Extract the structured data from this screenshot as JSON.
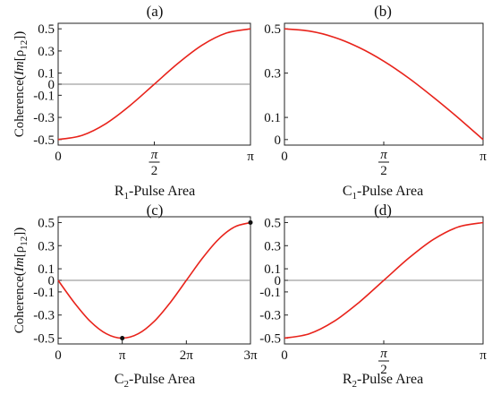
{
  "y_axis_label": "Coherence(Im[ρ12])",
  "chart_data": [
    {
      "type": "line",
      "panel": "(a)",
      "xlabel": "R1-Pulse Area",
      "xlim": [
        0,
        3.14159
      ],
      "ylim": [
        -0.55,
        0.55
      ],
      "xticks": [
        {
          "value": 0,
          "label": "0"
        },
        {
          "value": 1.5708,
          "label": "π/2"
        },
        {
          "value": 3.14159,
          "label": "π"
        }
      ],
      "yticks": [
        {
          "value": 0.5,
          "label": "0.5"
        },
        {
          "value": 0.3,
          "label": "0.3"
        },
        {
          "value": 0.1,
          "label": "0.1"
        },
        {
          "value": 0,
          "label": "0"
        },
        {
          "value": -0.1,
          "label": "-0.1"
        },
        {
          "value": -0.3,
          "label": "-0.3"
        },
        {
          "value": -0.5,
          "label": "-0.5"
        }
      ],
      "zero_line": true,
      "series": [
        {
          "color": "#e8231b",
          "x": [
            0,
            0.3927,
            0.7854,
            1.1781,
            1.5708,
            1.9635,
            2.3562,
            2.7489,
            3.14159
          ],
          "y": [
            -0.5,
            -0.462,
            -0.354,
            -0.191,
            0.0,
            0.191,
            0.354,
            0.462,
            0.5
          ]
        }
      ],
      "markers": []
    },
    {
      "type": "line",
      "panel": "(b)",
      "xlabel": "C1-Pulse Area",
      "xlim": [
        0,
        3.14159
      ],
      "ylim": [
        -0.025,
        0.525
      ],
      "xticks": [
        {
          "value": 0,
          "label": "0"
        },
        {
          "value": 1.5708,
          "label": "π/2"
        },
        {
          "value": 3.14159,
          "label": "π"
        }
      ],
      "yticks": [
        {
          "value": 0.5,
          "label": "0.5"
        },
        {
          "value": 0.3,
          "label": "0.3"
        },
        {
          "value": 0.1,
          "label": "0.1"
        },
        {
          "value": 0,
          "label": "0"
        }
      ],
      "zero_line": false,
      "series": [
        {
          "color": "#e8231b",
          "x": [
            0,
            0.3927,
            0.7854,
            1.1781,
            1.5708,
            1.9635,
            2.3562,
            2.7489,
            3.14159
          ],
          "y": [
            0.5,
            0.49,
            0.462,
            0.416,
            0.354,
            0.278,
            0.191,
            0.098,
            0.0
          ]
        }
      ],
      "markers": []
    },
    {
      "type": "line",
      "panel": "(c)",
      "xlabel": "C2-Pulse Area",
      "xlim": [
        0,
        9.42478
      ],
      "ylim": [
        -0.55,
        0.55
      ],
      "xticks": [
        {
          "value": 0,
          "label": "0"
        },
        {
          "value": 3.14159,
          "label": "π"
        },
        {
          "value": 6.28319,
          "label": "2π"
        },
        {
          "value": 9.42478,
          "label": "3π"
        }
      ],
      "yticks": [
        {
          "value": 0.5,
          "label": "0.5"
        },
        {
          "value": 0.3,
          "label": "0.3"
        },
        {
          "value": 0.1,
          "label": "0.1"
        },
        {
          "value": 0,
          "label": "0"
        },
        {
          "value": -0.1,
          "label": "-0.1"
        },
        {
          "value": -0.3,
          "label": "-0.3"
        },
        {
          "value": -0.5,
          "label": "-0.5"
        }
      ],
      "zero_line": true,
      "series": [
        {
          "color": "#e8231b",
          "x": [
            0,
            0.7854,
            1.5708,
            2.3562,
            3.14159,
            3.927,
            4.7124,
            5.4978,
            6.28319,
            7.0686,
            7.854,
            8.6394,
            9.42478
          ],
          "y": [
            0.0,
            -0.191,
            -0.354,
            -0.462,
            -0.5,
            -0.462,
            -0.354,
            -0.191,
            0.0,
            0.191,
            0.354,
            0.462,
            0.5
          ]
        }
      ],
      "markers": [
        {
          "x": 3.14159,
          "y": -0.5
        },
        {
          "x": 9.42478,
          "y": 0.5
        }
      ]
    },
    {
      "type": "line",
      "panel": "(d)",
      "xlabel": "R2-Pulse Area",
      "xlim": [
        0,
        3.14159
      ],
      "ylim": [
        -0.55,
        0.55
      ],
      "xticks": [
        {
          "value": 0,
          "label": "0"
        },
        {
          "value": 1.5708,
          "label": "π/2"
        },
        {
          "value": 3.14159,
          "label": "π"
        }
      ],
      "yticks": [
        {
          "value": 0.5,
          "label": "0.5"
        },
        {
          "value": 0.3,
          "label": "0.3"
        },
        {
          "value": 0.1,
          "label": "0.1"
        },
        {
          "value": 0,
          "label": "0"
        },
        {
          "value": -0.1,
          "label": "-0.1"
        },
        {
          "value": -0.3,
          "label": "-0.3"
        },
        {
          "value": -0.5,
          "label": "-0.5"
        }
      ],
      "zero_line": true,
      "series": [
        {
          "color": "#e8231b",
          "x": [
            0,
            0.3927,
            0.7854,
            1.1781,
            1.5708,
            1.9635,
            2.3562,
            2.7489,
            3.14159
          ],
          "y": [
            -0.5,
            -0.462,
            -0.354,
            -0.191,
            0.0,
            0.191,
            0.354,
            0.462,
            0.5
          ]
        }
      ],
      "markers": []
    }
  ]
}
